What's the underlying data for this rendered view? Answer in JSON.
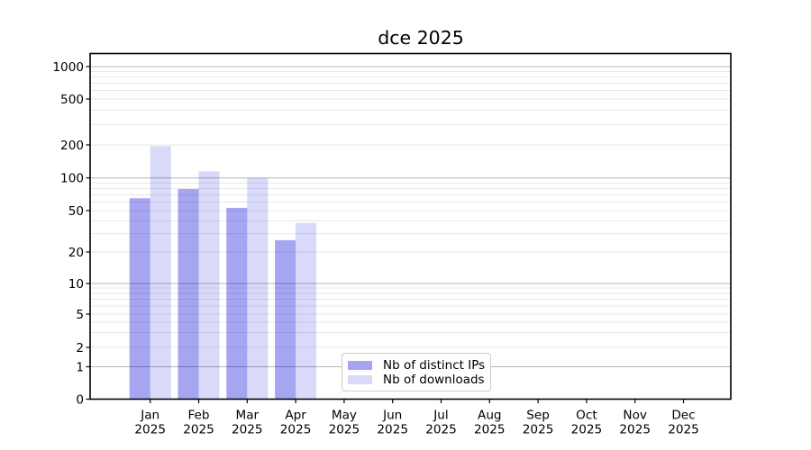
{
  "chart_data": {
    "type": "bar",
    "title": "dce 2025",
    "categories": [
      "Jan 2025",
      "Feb 2025",
      "Mar 2025",
      "Apr 2025",
      "May 2025",
      "Jun 2025",
      "Jul 2025",
      "Aug 2025",
      "Sep 2025",
      "Oct 2025",
      "Nov 2025",
      "Dec 2025"
    ],
    "series": [
      {
        "name": "Nb of distinct IPs",
        "color": "rgba(1,1,212,0.35)",
        "solid_color": "#a6a6f0",
        "values": [
          65,
          79,
          53,
          26,
          0,
          0,
          0,
          0,
          0,
          0,
          0,
          0
        ]
      },
      {
        "name": "Nb of downloads",
        "color": "rgba(2,2,215,0.15)",
        "solid_color": "#d9d9f9",
        "values": [
          195,
          115,
          100,
          38,
          0,
          0,
          0,
          0,
          0,
          0,
          0,
          0
        ]
      }
    ],
    "yticks": [
      0,
      1,
      2,
      5,
      10,
      20,
      50,
      100,
      200,
      500,
      1000
    ],
    "yscale": "log (symlog, 0 baseline shown)",
    "ylim": [
      0,
      1300
    ],
    "xlabel": "",
    "ylabel": "",
    "grid": true,
    "legend_position": "lower center"
  },
  "colors": {
    "bar_distinct_ips": "#a6a6f0",
    "bar_downloads": "#d9d9f9",
    "grid_major": "#b5b5b5",
    "grid_minor": "#e7e7e7",
    "axis": "#000000",
    "text": "#000000",
    "background": "#ffffff"
  }
}
